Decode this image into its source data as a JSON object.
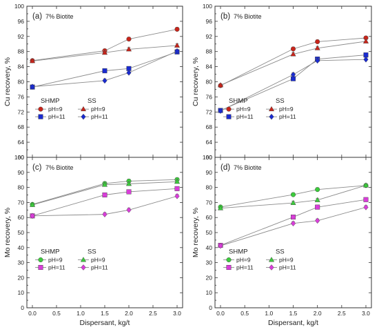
{
  "chart_data": [
    {
      "type": "line",
      "panel_label": "(a)",
      "subtitle": "7% Biotite",
      "xlabel": "",
      "ylabel": "Cu recovery, %",
      "xlim": [
        0,
        3
      ],
      "ylim": [
        60,
        100
      ],
      "x_ticks": [
        "0.0",
        "0.5",
        "1.0",
        "1.5",
        "2.0",
        "2.5",
        "3.0"
      ],
      "y_ticks": [
        "60",
        "64",
        "68",
        "72",
        "76",
        "80",
        "84",
        "88",
        "92",
        "96",
        "100"
      ],
      "x_tick_labels_visible": false,
      "x": [
        0,
        1.5,
        2,
        3
      ],
      "legend": {
        "position": "lower-left",
        "group_titles": [
          "SHMP",
          "SS"
        ]
      },
      "series": [
        {
          "name": "pH=9",
          "group": "SHMP",
          "marker": "circle",
          "color": "#c8251b",
          "values": [
            85.6,
            88.2,
            91.3,
            93.9
          ]
        },
        {
          "name": "pH=11",
          "group": "SHMP",
          "marker": "square",
          "color": "#1a2bd0",
          "values": [
            78.6,
            82.9,
            83.5,
            87.9
          ]
        },
        {
          "name": "pH=9",
          "group": "SS",
          "marker": "triangle",
          "color": "#c8251b",
          "values": [
            85.5,
            87.7,
            88.6,
            89.6
          ]
        },
        {
          "name": "pH=11",
          "group": "SS",
          "marker": "diamond",
          "color": "#1a2bd0",
          "values": [
            78.7,
            80.3,
            82.4,
            88.1
          ]
        }
      ]
    },
    {
      "type": "line",
      "panel_label": "(b)",
      "subtitle": "7% Biotite",
      "xlabel": "",
      "ylabel": "Cu recovery, %",
      "xlim": [
        0,
        3
      ],
      "ylim": [
        60,
        100
      ],
      "x_ticks": [
        "0.0",
        "0.5",
        "1.0",
        "1.5",
        "2.0",
        "2.5",
        "3.0"
      ],
      "y_ticks": [
        "60",
        "64",
        "68",
        "72",
        "76",
        "80",
        "84",
        "88",
        "92",
        "96",
        "100"
      ],
      "x_tick_labels_visible": false,
      "x": [
        0,
        1.5,
        2,
        3
      ],
      "legend": {
        "position": "lower-left",
        "group_titles": [
          "SHMP",
          "SS"
        ]
      },
      "series": [
        {
          "name": "pH=9",
          "group": "SHMP",
          "marker": "circle",
          "color": "#c8251b",
          "values": [
            79.0,
            88.7,
            90.6,
            91.6
          ]
        },
        {
          "name": "pH=11",
          "group": "SHMP",
          "marker": "square",
          "color": "#1a2bd0",
          "values": [
            72.4,
            80.8,
            86.0,
            87.1
          ]
        },
        {
          "name": "pH=9",
          "group": "SS",
          "marker": "triangle",
          "color": "#c8251b",
          "values": [
            79.1,
            87.3,
            88.9,
            90.7
          ]
        },
        {
          "name": "pH=11",
          "group": "SS",
          "marker": "diamond",
          "color": "#1a2bd0",
          "values": [
            72.3,
            81.9,
            85.6,
            85.9
          ]
        }
      ]
    },
    {
      "type": "line",
      "panel_label": "(c)",
      "subtitle": "7% Biotite",
      "xlabel": "Dispersant, kg/t",
      "ylabel": "Mo recovery, %",
      "xlim": [
        0,
        3
      ],
      "ylim": [
        0,
        100
      ],
      "x_ticks": [
        "0.0",
        "0.5",
        "1.0",
        "1.5",
        "2.0",
        "2.5",
        "3.0"
      ],
      "y_ticks": [
        "0",
        "10",
        "20",
        "30",
        "40",
        "50",
        "60",
        "70",
        "80",
        "90",
        "100"
      ],
      "x_tick_labels_visible": true,
      "x": [
        0,
        1.5,
        2,
        3
      ],
      "legend": {
        "position": "lower-left",
        "group_titles": [
          "SHMP",
          "SS"
        ]
      },
      "series": [
        {
          "name": "pH=9",
          "group": "SHMP",
          "marker": "circle",
          "color": "#3ccc3c",
          "values": [
            68.7,
            82.6,
            84.2,
            85.2
          ]
        },
        {
          "name": "pH=11",
          "group": "SHMP",
          "marker": "square",
          "color": "#d93dd9",
          "values": [
            61.1,
            75.0,
            77.1,
            79.2
          ]
        },
        {
          "name": "pH=9",
          "group": "SS",
          "marker": "triangle",
          "color": "#3ccc3c",
          "values": [
            68.4,
            81.8,
            82.4,
            83.8
          ]
        },
        {
          "name": "pH=11",
          "group": "SS",
          "marker": "diamond",
          "color": "#d93dd9",
          "values": [
            61.1,
            62.1,
            65.0,
            74.2
          ]
        }
      ]
    },
    {
      "type": "line",
      "panel_label": "(d)",
      "subtitle": "7% Biotite",
      "xlabel": "Dispersant, kg/t",
      "ylabel": "Mo recovery, %",
      "xlim": [
        0,
        3
      ],
      "ylim": [
        0,
        100
      ],
      "x_ticks": [
        "0.0",
        "0.5",
        "1.0",
        "1.5",
        "2.0",
        "2.5",
        "3.0"
      ],
      "y_ticks": [
        "0",
        "10",
        "20",
        "30",
        "40",
        "50",
        "60",
        "70",
        "80",
        "90",
        "100"
      ],
      "x_tick_labels_visible": true,
      "x": [
        0,
        1.5,
        2,
        3
      ],
      "legend": {
        "position": "lower-left",
        "group_titles": [
          "SHMP",
          "SS"
        ]
      },
      "series": [
        {
          "name": "pH=9",
          "group": "SHMP",
          "marker": "circle",
          "color": "#3ccc3c",
          "values": [
            67.0,
            75.2,
            78.6,
            81.3
          ]
        },
        {
          "name": "pH=11",
          "group": "SHMP",
          "marker": "square",
          "color": "#d93dd9",
          "values": [
            41.5,
            60.3,
            66.9,
            71.9
          ]
        },
        {
          "name": "pH=9",
          "group": "SS",
          "marker": "triangle",
          "color": "#3ccc3c",
          "values": [
            66.2,
            69.7,
            71.6,
            81.4
          ]
        },
        {
          "name": "pH=11",
          "group": "SS",
          "marker": "diamond",
          "color": "#d93dd9",
          "values": [
            41.2,
            56.1,
            57.9,
            66.8
          ]
        }
      ]
    }
  ]
}
